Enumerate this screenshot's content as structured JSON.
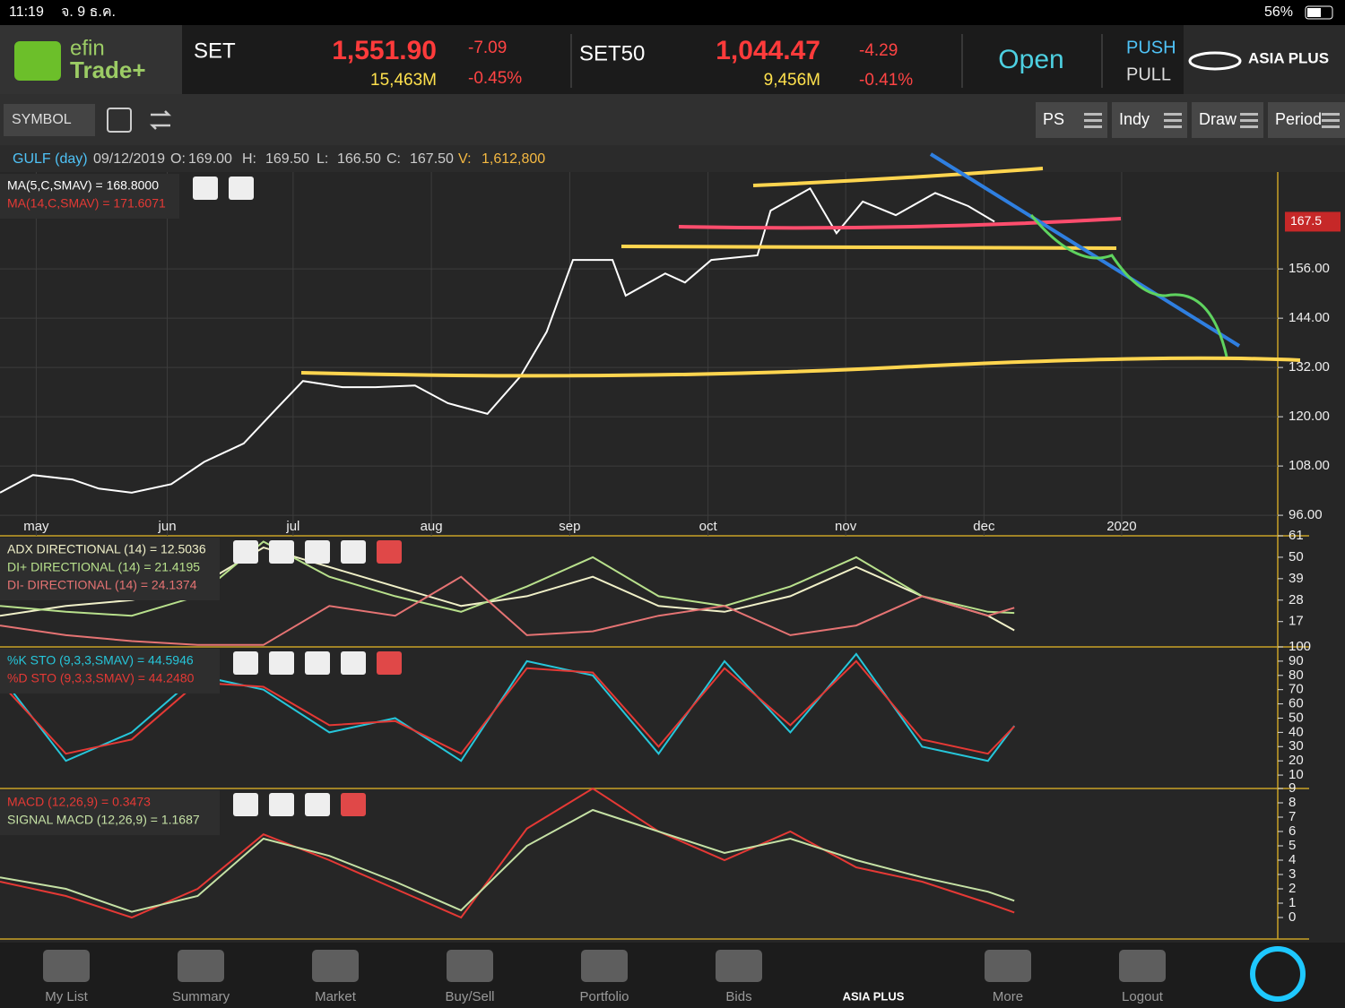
{
  "status_bar": {
    "time": "11:19",
    "date": "จ. 9 ธ.ค.",
    "battery": "56%"
  },
  "header": {
    "logo_top": "efin",
    "logo_bottom": "Trade+",
    "indices": [
      {
        "name": "SET",
        "value": "1,551.90",
        "change": "-7.09",
        "volume": "15,463M",
        "percent": "-0.45%"
      },
      {
        "name": "SET50",
        "value": "1,044.47",
        "change": "-4.29",
        "volume": "9,456M",
        "percent": "-0.41%"
      }
    ],
    "market_status": "Open",
    "push": "PUSH",
    "pull": "PULL",
    "broker": "ASIA PLUS"
  },
  "toolbar": {
    "symbol": "SYMBOL",
    "buttons": [
      "PS",
      "Indy",
      "Draw",
      "Period"
    ]
  },
  "info": {
    "symbol": "GULF (day)",
    "date": "09/12/2019",
    "open_label": "O:",
    "open": "169.00",
    "high_label": "H:",
    "high": "169.50",
    "low_label": "L:",
    "low": "166.50",
    "close_label": "C:",
    "close": "167.50",
    "volume_label": "V:",
    "volume": "1,612,800"
  },
  "chart_data": [
    {
      "type": "line",
      "color": "#ffffff",
      "x": [
        0,
        5,
        11,
        15,
        20,
        26,
        31,
        37,
        42,
        46,
        52,
        57,
        63,
        68,
        74,
        79,
        83,
        87,
        93,
        95,
        101,
        104,
        108,
        115,
        117,
        123,
        127,
        131,
        136,
        142,
        147,
        151
      ],
      "values": [
        101.5,
        105.8,
        104.7,
        102.5,
        101.5,
        103.6,
        109,
        113.5,
        122,
        128.7,
        127.2,
        127.2,
        127.6,
        123.3,
        120.7,
        129.8,
        140.7,
        158.2,
        158.2,
        149.5,
        154.9,
        152.7,
        158.2,
        159.3,
        170.2,
        175.6,
        164.7,
        172.4,
        169.1,
        174.5,
        171.3,
        167.5
      ],
      "xlim": [
        0,
        194
      ],
      "ylim": [
        91,
        179.6
      ],
      "yticks": [
        {
          "value": 96,
          "label": "96.00"
        },
        {
          "value": 108,
          "label": "108.00"
        },
        {
          "value": 120,
          "label": "120.00"
        },
        {
          "value": 132,
          "label": "132.00"
        },
        {
          "value": 144,
          "label": "144.00"
        },
        {
          "value": 156,
          "label": "156.00"
        }
      ],
      "xticks": [
        {
          "value": 5.5,
          "label": "may"
        },
        {
          "value": 25.4,
          "label": "jun"
        },
        {
          "value": 44.5,
          "label": "jul"
        },
        {
          "value": 65.5,
          "label": "aug"
        },
        {
          "value": 86.5,
          "label": "sep"
        },
        {
          "value": 107.5,
          "label": "oct"
        },
        {
          "value": 128.4,
          "label": "nov"
        },
        {
          "value": 149.4,
          "label": "dec"
        },
        {
          "value": 170.3,
          "label": "2020"
        }
      ],
      "last_value": {
        "value": 167.5,
        "label": "167.5"
      },
      "labels": [
        "MA(5,C,SMAV) = 168.8000",
        "MA(14,C,SMAV) = 171.6071"
      ],
      "label_colors": [
        "#ffffff",
        "#e53935"
      ]
    },
    {
      "type": "line",
      "x": [
        0,
        10,
        20,
        30,
        40,
        50,
        60,
        70,
        80,
        90,
        100,
        110,
        120,
        130,
        140,
        150,
        154
      ],
      "xlim": [
        0,
        194
      ],
      "ylim": [
        4,
        61
      ],
      "yticks": [
        61,
        50,
        39,
        28,
        17
      ],
      "series": [
        {
          "name": "ADX DIRECTIONAL (14) = 12.5036",
          "color": "#f0f0c8",
          "values": [
            20,
            25,
            28,
            35,
            55,
            45,
            35,
            25,
            30,
            40,
            25,
            22,
            30,
            45,
            30,
            20,
            12.5
          ]
        },
        {
          "name": "DI+ DIRECTIONAL (14) = 21.4195",
          "color": "#b8e08c",
          "values": [
            25,
            22,
            20,
            30,
            58,
            40,
            30,
            22,
            35,
            50,
            30,
            25,
            35,
            50,
            30,
            22,
            21.4
          ]
        },
        {
          "name": "DI- DIRECTIONAL (14) = 24.1374",
          "color": "#e57373",
          "values": [
            15,
            10,
            7,
            5,
            5,
            25,
            20,
            40,
            10,
            12,
            20,
            25,
            10,
            15,
            30,
            20,
            24.1
          ]
        }
      ]
    },
    {
      "type": "line",
      "x": [
        0,
        10,
        20,
        30,
        40,
        50,
        60,
        70,
        80,
        90,
        100,
        110,
        120,
        130,
        140,
        150,
        154
      ],
      "xlim": [
        0,
        194
      ],
      "ylim": [
        0.6,
        100
      ],
      "yticks": [
        100,
        90,
        80,
        70,
        60,
        50,
        40,
        30,
        20,
        10
      ],
      "series": [
        {
          "name": "%K STO (9,3,3,SMAV) = 44.5946",
          "color": "#26c6da",
          "values": [
            80,
            20,
            40,
            80,
            70,
            40,
            50,
            20,
            90,
            80,
            25,
            90,
            40,
            95,
            30,
            20,
            44.6
          ]
        },
        {
          "name": "%D STO (9,3,3,SMAV) = 44.2480",
          "color": "#e53935",
          "values": [
            75,
            25,
            35,
            75,
            72,
            45,
            48,
            25,
            85,
            82,
            30,
            85,
            45,
            90,
            35,
            25,
            44.2
          ]
        }
      ]
    },
    {
      "type": "line",
      "x": [
        0,
        10,
        20,
        30,
        40,
        50,
        60,
        70,
        80,
        90,
        100,
        110,
        120,
        130,
        140,
        150,
        154
      ],
      "xlim": [
        0,
        194
      ],
      "ylim": [
        -1.5,
        9
      ],
      "yticks": [
        9,
        8,
        7,
        6,
        5,
        4,
        3,
        2,
        1,
        0
      ],
      "series": [
        {
          "name": "MACD (12,26,9) = 0.3473",
          "color": "#e53935",
          "values": [
            2.5,
            1.5,
            0,
            2,
            5.8,
            4,
            2,
            0,
            6.2,
            9,
            6,
            4,
            6,
            3.5,
            2.5,
            1,
            0.35
          ]
        },
        {
          "name": "SIGNAL MACD (12,26,9) = 1.1687",
          "color": "#c5e1a5",
          "values": [
            2.8,
            2,
            0.4,
            1.5,
            5.5,
            4.3,
            2.5,
            0.5,
            5,
            7.5,
            6,
            4.5,
            5.5,
            4,
            2.8,
            1.8,
            1.17
          ]
        }
      ]
    }
  ],
  "nav": [
    "My List",
    "Summary",
    "Market",
    "Buy/Sell",
    "Portfolio",
    "Bids",
    "ASIA PLUS",
    "More",
    "Logout"
  ]
}
